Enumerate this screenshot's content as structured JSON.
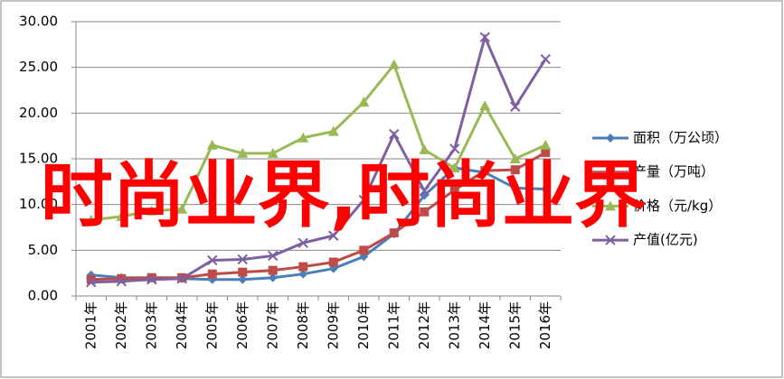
{
  "chart_data": {
    "type": "line",
    "categories": [
      "2001年",
      "2002年",
      "2003年",
      "2004年",
      "2005年",
      "2006年",
      "2007年",
      "2008年",
      "2009年",
      "2010年",
      "2011年",
      "2012年",
      "2013年",
      "2014年",
      "2015年",
      "2016年"
    ],
    "series": [
      {
        "name": "面积（万公顷）",
        "color": "#4a7ebb",
        "marker": "diamond",
        "values": [
          2.3,
          2.0,
          2.0,
          1.9,
          1.8,
          1.8,
          2.0,
          2.4,
          3.0,
          4.3,
          6.8,
          11.0,
          14.0,
          13.5,
          11.8,
          11.7
        ]
      },
      {
        "name": "产量（万吨）",
        "color": "#be4b48",
        "marker": "square",
        "values": [
          1.8,
          1.9,
          2.0,
          2.0,
          2.4,
          2.6,
          2.8,
          3.2,
          3.7,
          5.0,
          6.9,
          9.2,
          11.6,
          13.7,
          13.8,
          15.7
        ]
      },
      {
        "name": "价格（元/kg）",
        "color": "#98b954",
        "marker": "triangle",
        "values": [
          8.3,
          8.7,
          9.3,
          9.5,
          16.5,
          15.6,
          15.6,
          17.3,
          18.0,
          21.2,
          25.3,
          16.0,
          14.0,
          20.8,
          15.0,
          16.5
        ]
      },
      {
        "name": "产值(亿元)",
        "color": "#7d60a0",
        "marker": "x",
        "values": [
          1.5,
          1.6,
          1.8,
          1.9,
          3.9,
          4.0,
          4.4,
          5.8,
          6.6,
          10.5,
          17.7,
          11.5,
          16.1,
          28.3,
          20.7,
          25.9
        ]
      }
    ],
    "ylim": [
      0,
      30
    ],
    "yticks": [
      {
        "value": 0,
        "label": "0.00"
      },
      {
        "value": 5,
        "label": "5.00"
      },
      {
        "value": 10,
        "label": "10.00"
      },
      {
        "value": 15,
        "label": "15.00"
      },
      {
        "value": 20,
        "label": "20.00"
      },
      {
        "value": 25,
        "label": "25.00"
      },
      {
        "value": 30,
        "label": "30.00"
      }
    ],
    "grid": true,
    "legend": "right",
    "overlay_text": "时尚业界,时尚业界",
    "overlay_color": "#ff0000"
  }
}
